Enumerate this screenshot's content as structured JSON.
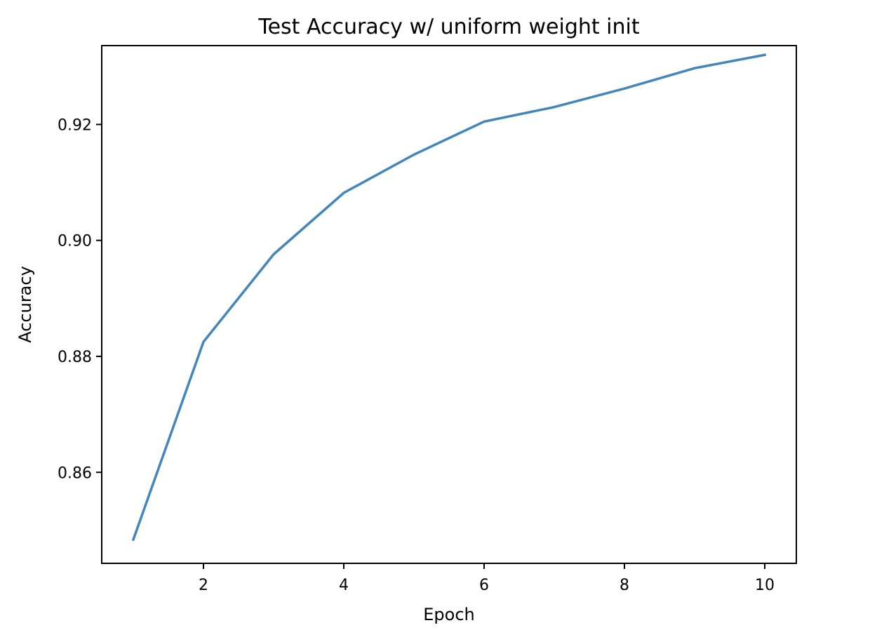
{
  "chart_data": {
    "type": "line",
    "title": "Test Accuracy w/ uniform weight init",
    "xlabel": "Epoch",
    "ylabel": "Accuracy",
    "xlim": [
      0.55,
      10.45
    ],
    "ylim": [
      0.8443,
      0.9336
    ],
    "xticks": [
      2,
      4,
      6,
      8,
      10
    ],
    "xtick_labels": [
      "2",
      "4",
      "6",
      "8",
      "10"
    ],
    "yticks": [
      0.86,
      0.88,
      0.9,
      0.92
    ],
    "ytick_labels": [
      "0.86",
      "0.88",
      "0.90",
      "0.92"
    ],
    "grid": false,
    "legend": "none",
    "series": [
      {
        "color": "#4386bb",
        "x": [
          1,
          2,
          3,
          4,
          5,
          6,
          7,
          8,
          9,
          10
        ],
        "y": [
          0.8484,
          0.8825,
          0.8976,
          0.9082,
          0.9148,
          0.9205,
          0.923,
          0.9262,
          0.9297,
          0.932
        ]
      }
    ]
  }
}
